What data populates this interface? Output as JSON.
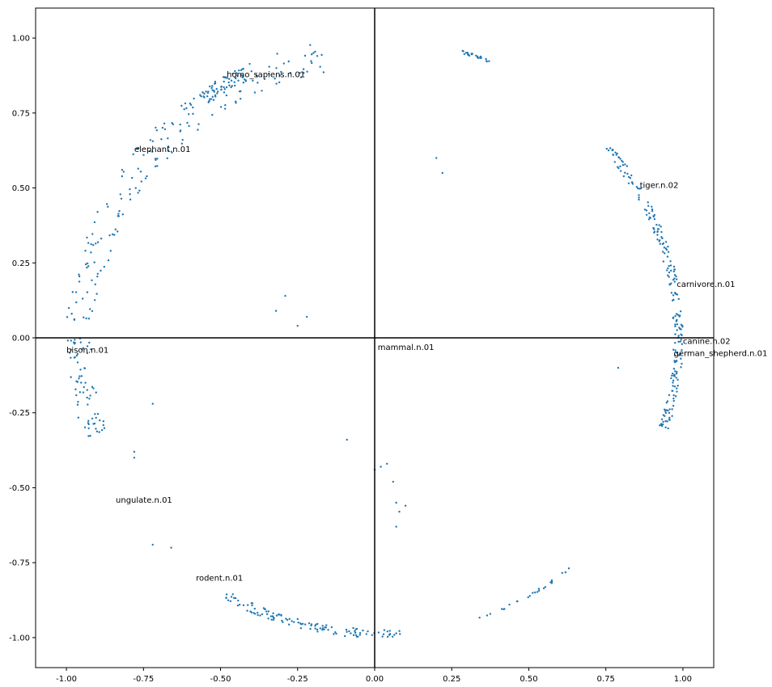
{
  "chart_data": {
    "type": "scatter",
    "title": "",
    "xlabel": "",
    "ylabel": "",
    "xlim": [
      -1.1,
      1.1
    ],
    "ylim": [
      -1.1,
      1.1
    ],
    "grid": false,
    "legend": "none",
    "marker_color": "#1f77b4",
    "axis_line_color": "#000000",
    "x_ticks": [
      "-1.00",
      "-0.75",
      "-0.50",
      "-0.25",
      "0.00",
      "0.25",
      "0.50",
      "0.75",
      "1.00"
    ],
    "y_ticks": [
      "1.00",
      "0.75",
      "0.50",
      "0.25",
      "0.00",
      "-0.25",
      "-0.50",
      "-0.75",
      "-1.00"
    ],
    "x_tick_values": [
      -1.0,
      -0.75,
      -0.5,
      -0.25,
      0.0,
      0.25,
      0.5,
      0.75,
      1.0
    ],
    "y_tick_values": [
      1.0,
      0.75,
      0.5,
      0.25,
      0.0,
      -0.25,
      -0.5,
      -0.75,
      -1.0
    ],
    "labeled_points": [
      {
        "label": "homo_sapiens.n.01",
        "x": -0.48,
        "y": 0.87
      },
      {
        "label": "elephant.n.01",
        "x": -0.78,
        "y": 0.62
      },
      {
        "label": "tiger.n.02",
        "x": 0.86,
        "y": 0.5
      },
      {
        "label": "carnivore.n.01",
        "x": 0.98,
        "y": 0.17
      },
      {
        "label": "canine.n.02",
        "x": 1.0,
        "y": -0.02
      },
      {
        "label": "german_shepherd.n.01",
        "x": 0.97,
        "y": -0.06
      },
      {
        "label": "mammal.n.01",
        "x": 0.01,
        "y": -0.04
      },
      {
        "label": "bison.n.01",
        "x": -1.0,
        "y": -0.05
      },
      {
        "label": "ungulate.n.01",
        "x": -0.84,
        "y": -0.55
      },
      {
        "label": "rodent.n.01",
        "x": -0.58,
        "y": -0.81
      }
    ],
    "clusters": [
      {
        "region": "top-left arc",
        "a0": 100,
        "a1": 178,
        "n": 180,
        "spread": 0.1
      },
      {
        "region": "homo sapiens",
        "a0": 115,
        "a1": 125,
        "n": 60,
        "spread": 0.05
      },
      {
        "region": "top-right",
        "a0": 68,
        "a1": 74,
        "n": 25,
        "spread": 0.01
      },
      {
        "region": "right arc",
        "a0": -18,
        "a1": 40,
        "n": 220,
        "spread": 0.03
      },
      {
        "region": "bottom arc",
        "a0": 240,
        "a1": 275,
        "n": 120,
        "spread": 0.03
      },
      {
        "region": "left lower",
        "a0": 180,
        "a1": 200,
        "n": 70,
        "spread": 0.08
      },
      {
        "region": "bottom right",
        "a0": 290,
        "a1": 310,
        "n": 25,
        "spread": 0.01
      }
    ],
    "extra_points": [
      [
        0.0,
        -0.44
      ],
      [
        0.02,
        -0.43
      ],
      [
        0.04,
        -0.42
      ],
      [
        0.06,
        -0.48
      ],
      [
        0.07,
        -0.55
      ],
      [
        0.08,
        -0.58
      ],
      [
        0.1,
        -0.56
      ],
      [
        0.07,
        -0.63
      ],
      [
        -0.09,
        -0.34
      ],
      [
        0.2,
        0.6
      ],
      [
        0.22,
        0.55
      ],
      [
        -0.29,
        0.14
      ],
      [
        -0.32,
        0.09
      ],
      [
        -0.25,
        0.04
      ],
      [
        -0.22,
        0.07
      ],
      [
        0.79,
        -0.1
      ],
      [
        -0.72,
        -0.69
      ],
      [
        -0.66,
        -0.7
      ],
      [
        -0.72,
        -0.22
      ],
      [
        -0.78,
        -0.38
      ],
      [
        -0.78,
        -0.4
      ]
    ]
  }
}
